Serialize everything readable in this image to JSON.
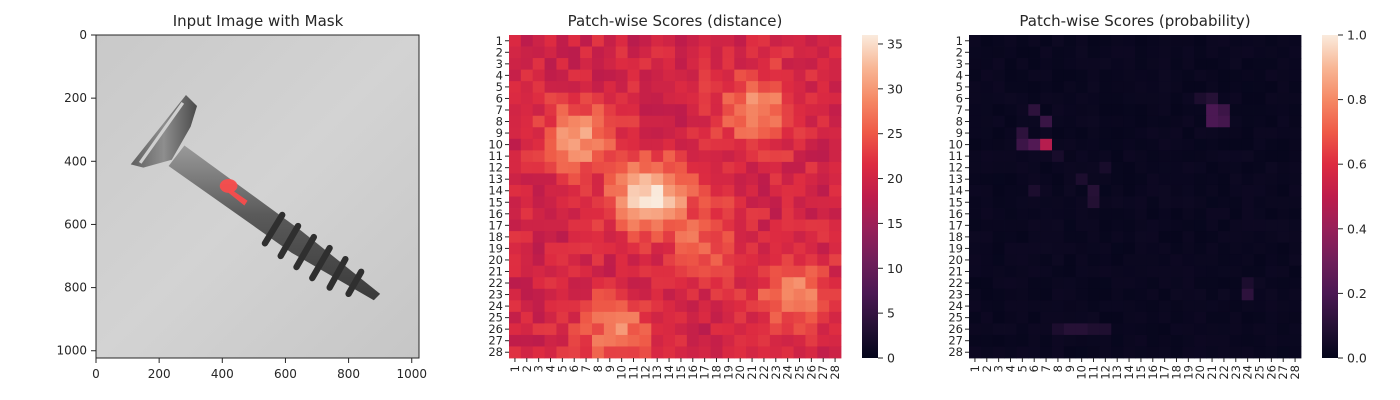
{
  "chart_data": [
    {
      "type": "image",
      "title": "Input Image with Mask",
      "xlim": [
        0,
        1023
      ],
      "ylim": [
        1023,
        0
      ],
      "xticks": [
        0,
        200,
        400,
        600,
        800,
        1000
      ],
      "yticks": [
        0,
        200,
        400,
        600,
        800,
        1000
      ],
      "subject": "screw on grey background",
      "mask_color": "#ff4040",
      "mask_region": {
        "x": [
          410,
          480
        ],
        "y": [
          470,
          530
        ]
      }
    },
    {
      "type": "heatmap",
      "title": "Patch-wise Scores (distance)",
      "rows": 28,
      "cols": 28,
      "row_labels": [
        "1",
        "2",
        "3",
        "4",
        "5",
        "6",
        "7",
        "8",
        "9",
        "10",
        "11",
        "12",
        "13",
        "14",
        "15",
        "16",
        "17",
        "18",
        "19",
        "20",
        "21",
        "22",
        "23",
        "24",
        "25",
        "26",
        "27",
        "28"
      ],
      "col_labels": [
        "1",
        "2",
        "3",
        "4",
        "5",
        "6",
        "7",
        "8",
        "9",
        "10",
        "11",
        "12",
        "13",
        "14",
        "15",
        "16",
        "17",
        "18",
        "19",
        "20",
        "21",
        "22",
        "23",
        "24",
        "25",
        "26",
        "27",
        "28"
      ],
      "colormap": "rocket",
      "value_range": [
        0,
        36
      ],
      "colorbar_ticks": [
        0,
        5,
        10,
        15,
        20,
        25,
        30,
        35
      ],
      "base_value": 20,
      "hotspots": [
        {
          "row": 14.5,
          "col": 12.5,
          "peak": 36,
          "spread": 2.2
        },
        {
          "row": 9.5,
          "col": 6.5,
          "peak": 30,
          "spread": 2.2
        },
        {
          "row": 7.0,
          "col": 21.5,
          "peak": 29,
          "spread": 2.3
        },
        {
          "row": 23.0,
          "col": 24.5,
          "peak": 28,
          "spread": 2.2
        },
        {
          "row": 26.0,
          "col": 9.5,
          "peak": 28,
          "spread": 2.2
        },
        {
          "row": 18.0,
          "col": 16.5,
          "peak": 26,
          "spread": 2.5
        }
      ],
      "noise_amplitude": 2.5
    },
    {
      "type": "heatmap",
      "title": "Patch-wise Scores (probability)",
      "rows": 28,
      "cols": 28,
      "row_labels": [
        "1",
        "2",
        "3",
        "4",
        "5",
        "6",
        "7",
        "8",
        "9",
        "10",
        "11",
        "12",
        "13",
        "14",
        "15",
        "16",
        "17",
        "18",
        "19",
        "20",
        "21",
        "22",
        "23",
        "24",
        "25",
        "26",
        "27",
        "28"
      ],
      "col_labels": [
        "1",
        "2",
        "3",
        "4",
        "5",
        "6",
        "7",
        "8",
        "9",
        "10",
        "11",
        "12",
        "13",
        "14",
        "15",
        "16",
        "17",
        "18",
        "19",
        "20",
        "21",
        "22",
        "23",
        "24",
        "25",
        "26",
        "27",
        "28"
      ],
      "colormap": "rocket",
      "value_range": [
        0,
        1
      ],
      "colorbar_ticks": [
        "0.0",
        "0.2",
        "0.4",
        "0.6",
        "0.8",
        "1.0"
      ],
      "base_value": 0.02,
      "cells": [
        {
          "row": 10,
          "col": 7,
          "value": 0.48
        },
        {
          "row": 10,
          "col": 6,
          "value": 0.22
        },
        {
          "row": 10,
          "col": 5,
          "value": 0.16
        },
        {
          "row": 9,
          "col": 5,
          "value": 0.12
        },
        {
          "row": 8,
          "col": 7,
          "value": 0.15
        },
        {
          "row": 7,
          "col": 6,
          "value": 0.12
        },
        {
          "row": 7,
          "col": 21,
          "value": 0.2
        },
        {
          "row": 7,
          "col": 22,
          "value": 0.16
        },
        {
          "row": 8,
          "col": 21,
          "value": 0.2
        },
        {
          "row": 8,
          "col": 22,
          "value": 0.18
        },
        {
          "row": 6,
          "col": 21,
          "value": 0.1
        },
        {
          "row": 6,
          "col": 20,
          "value": 0.07
        },
        {
          "row": 14,
          "col": 11,
          "value": 0.1
        },
        {
          "row": 15,
          "col": 11,
          "value": 0.09
        },
        {
          "row": 13,
          "col": 10,
          "value": 0.07
        },
        {
          "row": 14,
          "col": 6,
          "value": 0.07
        },
        {
          "row": 23,
          "col": 24,
          "value": 0.12
        },
        {
          "row": 22,
          "col": 24,
          "value": 0.07
        },
        {
          "row": 26,
          "col": 9,
          "value": 0.1
        },
        {
          "row": 26,
          "col": 10,
          "value": 0.1
        },
        {
          "row": 26,
          "col": 11,
          "value": 0.08
        },
        {
          "row": 26,
          "col": 12,
          "value": 0.08
        },
        {
          "row": 26,
          "col": 8,
          "value": 0.07
        },
        {
          "row": 11,
          "col": 8,
          "value": 0.06
        },
        {
          "row": 12,
          "col": 12,
          "value": 0.06
        }
      ]
    }
  ]
}
